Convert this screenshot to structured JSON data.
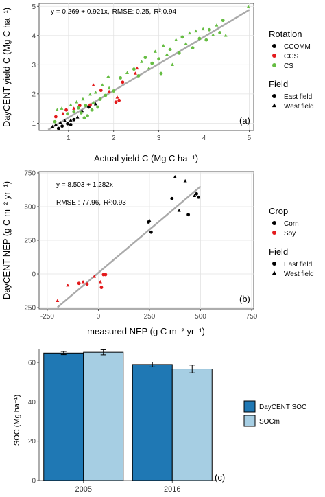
{
  "chart_data": [
    {
      "type": "scatter",
      "panel_label": "(a)",
      "equation": "y = 0.269 + 0.921x,",
      "rmse": "RMSE: 0.25,",
      "r2": "R²:0.94",
      "xlabel": "Actual yield C (Mg C ha⁻¹)",
      "ylabel": "DayCENT yield C  (Mg C ha⁻¹)",
      "xlim": [
        0.35,
        5.1
      ],
      "ylim": [
        0.75,
        5.1
      ],
      "xticks": [
        1,
        2,
        3,
        4,
        5
      ],
      "yticks": [
        1,
        2,
        3,
        4,
        5
      ],
      "grid": true,
      "fit_line": {
        "x": [
          0.55,
          5.0
        ],
        "y": [
          0.776,
          4.874
        ]
      },
      "legend_placement": "right",
      "legend": {
        "color_title": "Rotation",
        "color_entries": [
          {
            "name": "CCOMM",
            "color": "#000000"
          },
          {
            "name": "CCS",
            "color": "#e31a1c"
          },
          {
            "name": "CS",
            "color": "#66bd43"
          }
        ],
        "shape_title": "Field",
        "shape_entries": [
          {
            "name": "East field",
            "shape": "circle"
          },
          {
            "name": "West field",
            "shape": "triangle"
          }
        ]
      },
      "series": [
        {
          "name": "CCOMM",
          "color": "#000000",
          "points": [
            {
              "x": 0.62,
              "y": 0.72,
              "s": "triangle"
            },
            {
              "x": 0.65,
              "y": 0.88,
              "s": "triangle"
            },
            {
              "x": 0.72,
              "y": 0.95,
              "s": "triangle"
            },
            {
              "x": 0.78,
              "y": 0.82,
              "s": "circle"
            },
            {
              "x": 0.82,
              "y": 1.02,
              "s": "triangle"
            },
            {
              "x": 0.86,
              "y": 0.9,
              "s": "circle"
            },
            {
              "x": 0.92,
              "y": 1.08,
              "s": "triangle"
            },
            {
              "x": 0.98,
              "y": 0.98,
              "s": "circle"
            },
            {
              "x": 1.05,
              "y": 1.1,
              "s": "triangle"
            },
            {
              "x": 1.12,
              "y": 1.12,
              "s": "circle"
            },
            {
              "x": 1.2,
              "y": 1.2,
              "s": "triangle"
            },
            {
              "x": 1.3,
              "y": 1.42,
              "s": "triangle"
            },
            {
              "x": 1.45,
              "y": 1.55,
              "s": "circle"
            },
            {
              "x": 1.6,
              "y": 1.65,
              "s": "triangle"
            },
            {
              "x": 1.05,
              "y": 0.95,
              "s": "circle"
            }
          ]
        },
        {
          "name": "CCS",
          "color": "#e31a1c",
          "points": [
            {
              "x": 0.72,
              "y": 1.22,
              "s": "circle"
            },
            {
              "x": 0.88,
              "y": 1.32,
              "s": "triangle"
            },
            {
              "x": 0.95,
              "y": 1.45,
              "s": "circle"
            },
            {
              "x": 1.12,
              "y": 1.5,
              "s": "triangle"
            },
            {
              "x": 1.25,
              "y": 1.6,
              "s": "circle"
            },
            {
              "x": 1.48,
              "y": 1.62,
              "s": "circle"
            },
            {
              "x": 1.55,
              "y": 2.3,
              "s": "triangle"
            },
            {
              "x": 1.72,
              "y": 2.12,
              "s": "circle"
            },
            {
              "x": 1.9,
              "y": 2.08,
              "s": "triangle"
            },
            {
              "x": 2.05,
              "y": 1.72,
              "s": "circle"
            },
            {
              "x": 2.08,
              "y": 1.88,
              "s": "triangle"
            },
            {
              "x": 2.2,
              "y": 2.4,
              "s": "circle"
            },
            {
              "x": 2.48,
              "y": 2.7,
              "s": "triangle"
            },
            {
              "x": 2.52,
              "y": 2.88,
              "s": "triangle"
            },
            {
              "x": 2.12,
              "y": 1.78,
              "s": "circle"
            }
          ]
        },
        {
          "name": "CS",
          "color": "#66bd43",
          "points": [
            {
              "x": 0.7,
              "y": 1.05,
              "s": "circle"
            },
            {
              "x": 0.75,
              "y": 1.45,
              "s": "triangle"
            },
            {
              "x": 0.85,
              "y": 1.5,
              "s": "triangle"
            },
            {
              "x": 0.98,
              "y": 1.32,
              "s": "circle"
            },
            {
              "x": 1.05,
              "y": 1.62,
              "s": "triangle"
            },
            {
              "x": 1.12,
              "y": 1.4,
              "s": "circle"
            },
            {
              "x": 1.18,
              "y": 1.72,
              "s": "triangle"
            },
            {
              "x": 1.22,
              "y": 1.52,
              "s": "circle"
            },
            {
              "x": 1.28,
              "y": 1.35,
              "s": "circle"
            },
            {
              "x": 1.32,
              "y": 1.82,
              "s": "triangle"
            },
            {
              "x": 1.38,
              "y": 1.6,
              "s": "circle"
            },
            {
              "x": 1.42,
              "y": 1.25,
              "s": "circle"
            },
            {
              "x": 1.48,
              "y": 1.98,
              "s": "triangle"
            },
            {
              "x": 1.52,
              "y": 1.45,
              "s": "circle"
            },
            {
              "x": 1.55,
              "y": 1.7,
              "s": "triangle"
            },
            {
              "x": 1.6,
              "y": 2.05,
              "s": "triangle"
            },
            {
              "x": 1.65,
              "y": 1.55,
              "s": "circle"
            },
            {
              "x": 1.7,
              "y": 1.82,
              "s": "circle"
            },
            {
              "x": 1.75,
              "y": 2.3,
              "s": "triangle"
            },
            {
              "x": 1.82,
              "y": 1.95,
              "s": "circle"
            },
            {
              "x": 1.9,
              "y": 2.2,
              "s": "triangle"
            },
            {
              "x": 2.0,
              "y": 2.1,
              "s": "circle"
            },
            {
              "x": 2.15,
              "y": 2.55,
              "s": "circle"
            },
            {
              "x": 2.3,
              "y": 2.72,
              "s": "triangle"
            },
            {
              "x": 2.45,
              "y": 2.85,
              "s": "circle"
            },
            {
              "x": 2.55,
              "y": 2.62,
              "s": "circle"
            },
            {
              "x": 2.62,
              "y": 3.1,
              "s": "triangle"
            },
            {
              "x": 2.7,
              "y": 3.25,
              "s": "circle"
            },
            {
              "x": 2.78,
              "y": 2.88,
              "s": "triangle"
            },
            {
              "x": 2.85,
              "y": 3.05,
              "s": "circle"
            },
            {
              "x": 2.92,
              "y": 3.45,
              "s": "triangle"
            },
            {
              "x": 3.0,
              "y": 3.2,
              "s": "circle"
            },
            {
              "x": 3.05,
              "y": 2.7,
              "s": "circle"
            },
            {
              "x": 3.1,
              "y": 3.65,
              "s": "triangle"
            },
            {
              "x": 3.18,
              "y": 3.35,
              "s": "triangle"
            },
            {
              "x": 3.25,
              "y": 3.52,
              "s": "circle"
            },
            {
              "x": 3.3,
              "y": 3.0,
              "s": "triangle"
            },
            {
              "x": 3.38,
              "y": 3.85,
              "s": "triangle"
            },
            {
              "x": 3.45,
              "y": 3.4,
              "s": "circle"
            },
            {
              "x": 3.52,
              "y": 3.95,
              "s": "circle"
            },
            {
              "x": 3.6,
              "y": 3.72,
              "s": "triangle"
            },
            {
              "x": 3.68,
              "y": 4.08,
              "s": "triangle"
            },
            {
              "x": 3.75,
              "y": 3.58,
              "s": "circle"
            },
            {
              "x": 3.82,
              "y": 4.15,
              "s": "triangle"
            },
            {
              "x": 3.9,
              "y": 3.9,
              "s": "circle"
            },
            {
              "x": 3.98,
              "y": 4.22,
              "s": "triangle"
            },
            {
              "x": 4.05,
              "y": 3.85,
              "s": "circle"
            },
            {
              "x": 4.12,
              "y": 4.2,
              "s": "circle"
            },
            {
              "x": 4.2,
              "y": 4.02,
              "s": "triangle"
            },
            {
              "x": 4.28,
              "y": 4.35,
              "s": "triangle"
            },
            {
              "x": 4.35,
              "y": 4.1,
              "s": "circle"
            },
            {
              "x": 4.42,
              "y": 4.52,
              "s": "circle"
            },
            {
              "x": 4.48,
              "y": 4.0,
              "s": "triangle"
            },
            {
              "x": 4.98,
              "y": 4.98,
              "s": "triangle"
            },
            {
              "x": 1.35,
              "y": 1.18,
              "s": "circle"
            },
            {
              "x": 1.88,
              "y": 2.6,
              "s": "triangle"
            }
          ]
        }
      ]
    },
    {
      "type": "scatter",
      "panel_label": "(b)",
      "equation": "y = 8.503 + 1.282x",
      "rmse": "RMSE : 77.96,",
      "r2": "R²:0.93",
      "xlabel": "measured NEP (g C m⁻² yr⁻¹)",
      "ylabel": "DayCENT NEP (g C m⁻² yr⁻¹)",
      "xlim": [
        -290,
        760
      ],
      "ylim": [
        -260,
        760
      ],
      "xticks": [
        -250,
        0,
        250,
        500,
        750
      ],
      "yticks": [
        -250,
        0,
        250,
        500,
        750
      ],
      "grid": true,
      "fit_line": {
        "x": [
          -200,
          500
        ],
        "y": [
          -248,
          650
        ]
      },
      "legend_placement": "right",
      "legend": {
        "color_title": "Crop",
        "color_entries": [
          {
            "name": "Corn",
            "color": "#000000"
          },
          {
            "name": "Soy",
            "color": "#e31a1c"
          }
        ],
        "shape_title": "Field",
        "shape_entries": [
          {
            "name": "East field",
            "shape": "circle"
          },
          {
            "name": "West field",
            "shape": "triangle"
          }
        ]
      },
      "series": [
        {
          "name": "Corn",
          "color": "#000000",
          "points": [
            {
              "x": 245,
              "y": 385,
              "s": "circle"
            },
            {
              "x": 250,
              "y": 395,
              "s": "triangle"
            },
            {
              "x": 258,
              "y": 310,
              "s": "circle"
            },
            {
              "x": 360,
              "y": 560,
              "s": "circle"
            },
            {
              "x": 375,
              "y": 720,
              "s": "triangle"
            },
            {
              "x": 395,
              "y": 470,
              "s": "triangle"
            },
            {
              "x": 425,
              "y": 690,
              "s": "triangle"
            },
            {
              "x": 440,
              "y": 440,
              "s": "circle"
            },
            {
              "x": 470,
              "y": 580,
              "s": "triangle"
            },
            {
              "x": 480,
              "y": 595,
              "s": "circle"
            },
            {
              "x": 490,
              "y": 570,
              "s": "circle"
            }
          ]
        },
        {
          "name": "Soy",
          "color": "#e31a1c",
          "points": [
            {
              "x": -200,
              "y": -200,
              "s": "triangle"
            },
            {
              "x": -150,
              "y": -85,
              "s": "triangle"
            },
            {
              "x": -95,
              "y": -70,
              "s": "circle"
            },
            {
              "x": -75,
              "y": -60,
              "s": "triangle"
            },
            {
              "x": -55,
              "y": -75,
              "s": "circle"
            },
            {
              "x": -20,
              "y": -20,
              "s": "triangle"
            },
            {
              "x": 10,
              "y": -60,
              "s": "triangle"
            },
            {
              "x": 15,
              "y": -100,
              "s": "circle"
            },
            {
              "x": 25,
              "y": -5,
              "s": "circle"
            },
            {
              "x": 35,
              "y": -5,
              "s": "circle"
            }
          ]
        }
      ]
    },
    {
      "type": "bar",
      "panel_label": "(c)",
      "categories": [
        "2005",
        "2016"
      ],
      "ylabel": "SOC (Mg ha⁻¹)",
      "ylim": [
        0,
        67
      ],
      "yticks": [
        0,
        20,
        40,
        60
      ],
      "grid": false,
      "legend_placement": "right",
      "series": [
        {
          "name": "DayCENT SOC",
          "color": "#1f78b4",
          "values": [
            64.8,
            59.0
          ],
          "errors": [
            0.8,
            1.2
          ]
        },
        {
          "name": "SOCm",
          "color": "#a6cee3",
          "values": [
            65.2,
            56.7
          ],
          "errors": [
            1.3,
            2.0
          ]
        }
      ]
    }
  ]
}
